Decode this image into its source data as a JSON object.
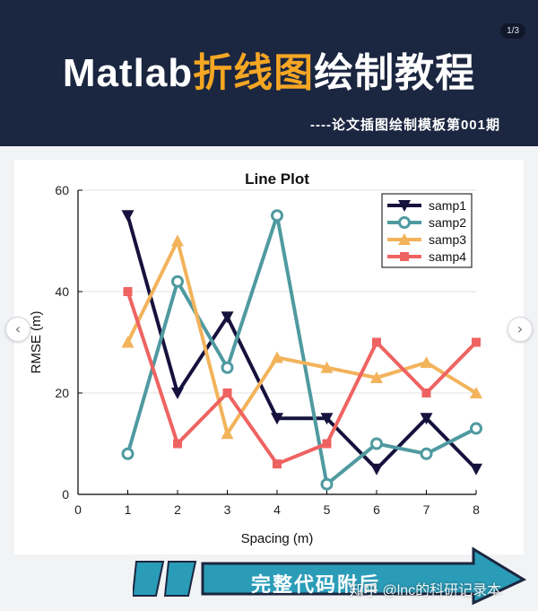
{
  "page_indicator": "1/3",
  "header": {
    "title_part1": "Matlab",
    "title_highlight": "折线图",
    "title_part2": "绘制教程",
    "subtitle": "----论文插图绘制模板第001期"
  },
  "colors": {
    "header_bg": "#1b2640",
    "highlight": "#f5a623",
    "banner": "#2a9cb8"
  },
  "banner": {
    "text": "完整代码附后"
  },
  "watermark": "知乎 @lnc的科研记录本",
  "nav": {
    "prev_icon": "chevron-left-icon",
    "next_icon": "chevron-right-icon"
  },
  "chart_data": {
    "type": "line",
    "title": "Line Plot",
    "xlabel": "Spacing (m)",
    "ylabel": "RMSE (m)",
    "xlim": [
      0,
      8
    ],
    "ylim": [
      0,
      60
    ],
    "xticks": [
      0,
      1,
      2,
      3,
      4,
      5,
      6,
      7,
      8
    ],
    "yticks": [
      0,
      20,
      40,
      60
    ],
    "grid": "horizontal",
    "legend_position": "top-right",
    "x": [
      1,
      2,
      3,
      4,
      5,
      6,
      7,
      8
    ],
    "series": [
      {
        "name": "samp1",
        "color": "#16123d",
        "marker": "triangle-down",
        "values": [
          55,
          20,
          35,
          15,
          15,
          5,
          15,
          5
        ]
      },
      {
        "name": "samp2",
        "color": "#4f9aa0",
        "marker": "circle",
        "values": [
          8,
          42,
          25,
          55,
          2,
          10,
          8,
          13
        ]
      },
      {
        "name": "samp3",
        "color": "#f2b35b",
        "marker": "triangle-up",
        "values": [
          30,
          50,
          12,
          27,
          25,
          23,
          26,
          20
        ]
      },
      {
        "name": "samp4",
        "color": "#ee6361",
        "marker": "square",
        "values": [
          40,
          10,
          20,
          6,
          10,
          30,
          20,
          30
        ]
      }
    ]
  }
}
